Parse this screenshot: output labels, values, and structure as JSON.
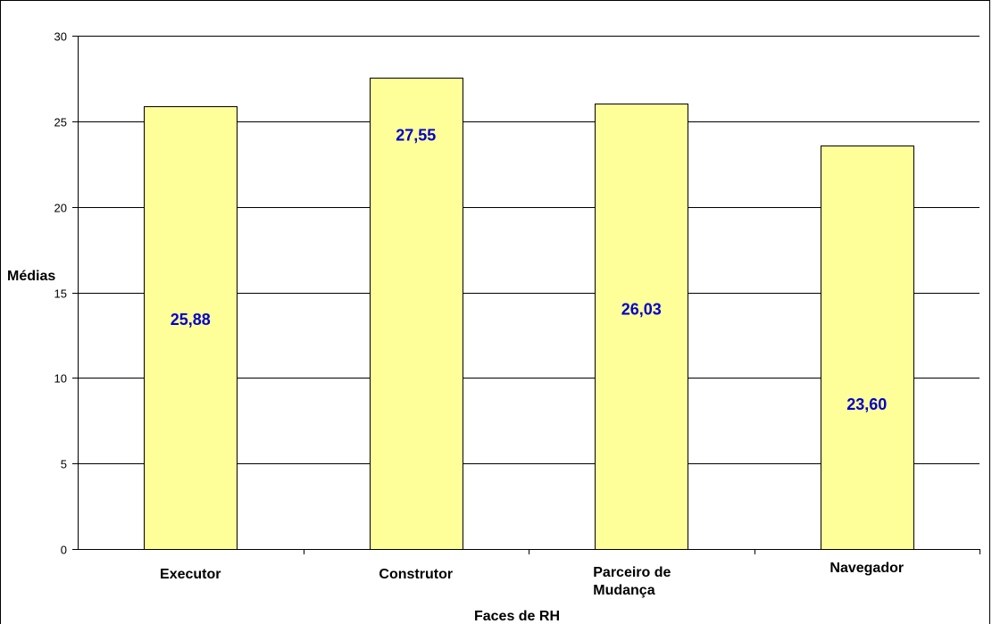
{
  "chart_data": {
    "type": "bar",
    "categories": [
      [
        "Executor"
      ],
      [
        "Construtor"
      ],
      [
        "Parceiro de",
        "Mudança"
      ],
      [
        "Navegador"
      ]
    ],
    "values": [
      25.88,
      27.55,
      26.03,
      23.6
    ],
    "data_labels": [
      "25,88",
      "27,55",
      "26,03",
      "23,60"
    ],
    "xlabel": "Faces de RH",
    "ylabel": "Médias",
    "ylim": [
      0,
      30
    ],
    "yticks": [
      0,
      5,
      10,
      15,
      20,
      25,
      30
    ],
    "grid": true,
    "bar_color": "#ffff99",
    "bar_edge_color": "#000000",
    "label_color": "#0000cc"
  }
}
